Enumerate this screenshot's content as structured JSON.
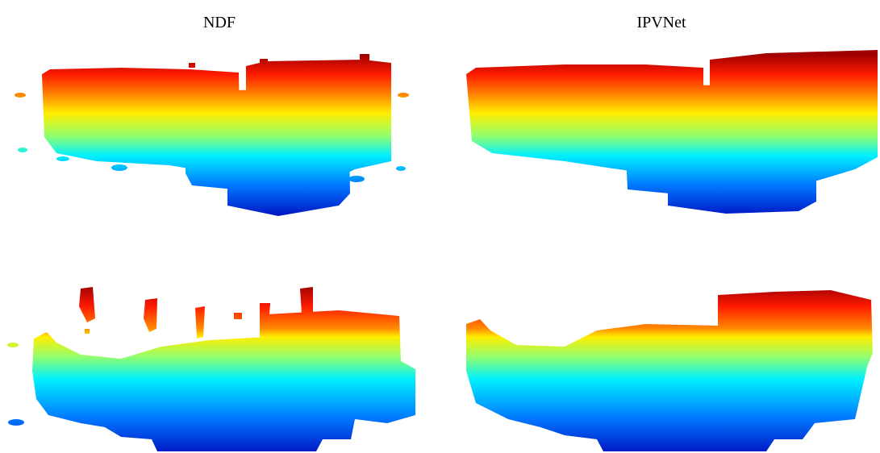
{
  "columns": [
    "NDF",
    "IPVNet"
  ]
}
